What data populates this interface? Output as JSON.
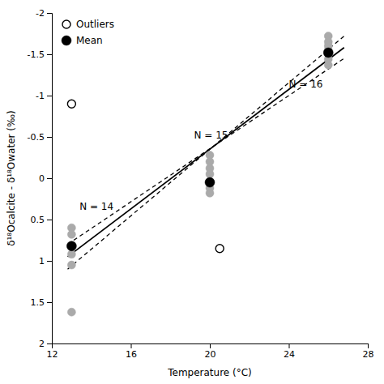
{
  "chart_data": {
    "type": "scatter",
    "xlabel": "Temperature (°C)",
    "ylabel": "δ¹⁸Ocalcite - δ¹⁸Owater (‰)",
    "xlim": [
      12,
      28
    ],
    "ylim": [
      2,
      -2
    ],
    "xticks": [
      12,
      16,
      20,
      24,
      28
    ],
    "yticks": [
      -2,
      -1.5,
      -1,
      -0.5,
      0,
      0.5,
      1,
      1.5,
      2
    ],
    "grid": false,
    "legend": "upper-left",
    "series": [
      {
        "type": "scatter",
        "marker": "circle",
        "color": "#aaaaaa",
        "x": [
          13.0,
          13.0,
          13.0,
          13.0,
          13.0,
          13.0,
          20.0,
          20.0,
          20.0,
          20.0,
          20.0,
          20.0,
          20.0,
          26.0,
          26.0,
          26.0,
          26.0,
          26.0,
          26.0,
          26.0
        ],
        "values": [
          0.6,
          0.68,
          0.82,
          0.92,
          1.05,
          1.62,
          -0.28,
          -0.2,
          -0.12,
          -0.05,
          0.05,
          0.12,
          0.18,
          -1.72,
          -1.65,
          -1.6,
          -1.55,
          -1.5,
          -1.44,
          -1.37
        ]
      },
      {
        "type": "line",
        "line_style": "solid",
        "color": "#000000",
        "x": [
          12.8,
          26.8
        ],
        "values": [
          0.95,
          -1.58
        ]
      },
      {
        "type": "line",
        "line_style": "dashed",
        "color": "#000000",
        "x": [
          12.8,
          26.8
        ],
        "values": [
          0.8,
          -1.45
        ]
      },
      {
        "type": "line",
        "line_style": "dashed",
        "color": "#000000",
        "x": [
          12.8,
          26.8
        ],
        "values": [
          1.1,
          -1.72
        ]
      },
      {
        "name": "Outliers",
        "type": "scatter",
        "marker": "open-circle",
        "color": "#000000",
        "x": [
          13.0,
          20.5
        ],
        "values": [
          -0.9,
          0.85
        ]
      },
      {
        "name": "Mean",
        "type": "scatter",
        "marker": "circle",
        "color": "#000000",
        "x": [
          13.0,
          20.0,
          26.0
        ],
        "values": [
          0.82,
          0.05,
          -1.52
        ]
      }
    ],
    "annotations": [
      {
        "text": "N = 14",
        "x": 13.4,
        "y": 0.38
      },
      {
        "text": "N = 15",
        "x": 19.2,
        "y": -0.48
      },
      {
        "text": "N = 16",
        "x": 24.0,
        "y": -1.1
      }
    ]
  }
}
